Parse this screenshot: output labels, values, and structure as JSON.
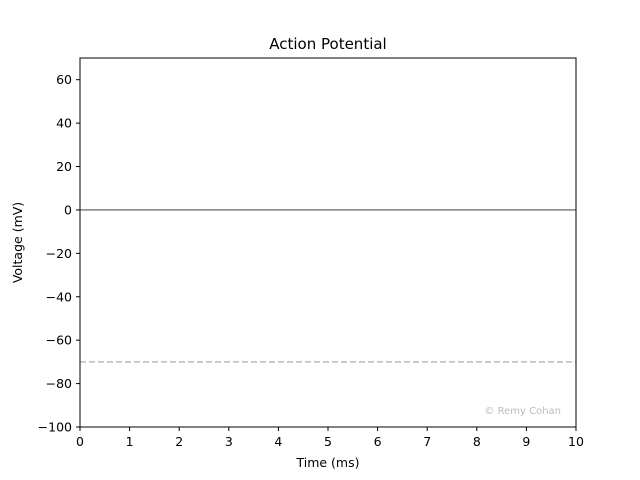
{
  "chart_data": {
    "type": "line",
    "title": "Action Potential",
    "xlabel": "Time (ms)",
    "ylabel": "Voltage (mV)",
    "xlim": [
      0,
      10
    ],
    "ylim": [
      -100,
      70
    ],
    "x_ticks": [
      "0",
      "1",
      "2",
      "3",
      "4",
      "5",
      "6",
      "7",
      "8",
      "9",
      "10"
    ],
    "y_ticks": [
      "60",
      "40",
      "20",
      "0",
      "−20",
      "−40",
      "−60",
      "−80",
      "−100"
    ],
    "x_tick_values": [
      0,
      1,
      2,
      3,
      4,
      5,
      6,
      7,
      8,
      9,
      10
    ],
    "y_tick_values": [
      60,
      40,
      20,
      0,
      -20,
      -40,
      -60,
      -80,
      -100
    ],
    "grid": false,
    "reference_lines": [
      {
        "y": 0,
        "style": "solid",
        "color": "#555555"
      },
      {
        "y": -70,
        "style": "dashed",
        "color": "#bbbbbb"
      }
    ],
    "series": [],
    "annotation": "© Remy Cohan",
    "annotation_color": "#bbbbbb"
  }
}
